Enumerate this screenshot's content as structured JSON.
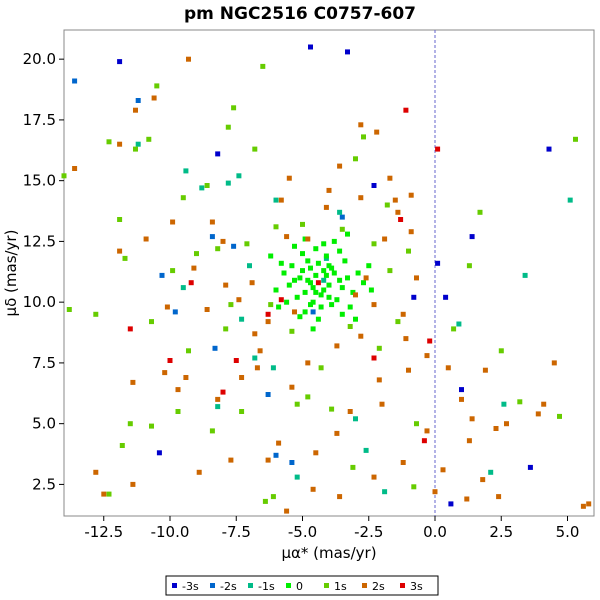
{
  "chart_data": {
    "type": "scatter",
    "title": "pm NGC2516  C0757-607",
    "xlabel": "μα* (mas/yr)",
    "ylabel": "μδ (mas/yr)",
    "xlim": [
      -14.0,
      6.0
    ],
    "ylim": [
      1.2,
      21.2
    ],
    "xticks": [
      -12.5,
      -10.0,
      -7.5,
      -5.0,
      -2.5,
      0.0,
      2.5,
      5.0
    ],
    "xtick_labels": [
      "-12.5",
      "-10.0",
      "-7.5",
      "-5.0",
      "-2.5",
      "0.0",
      "2.5",
      "5.0"
    ],
    "yticks": [
      2.5,
      5.0,
      7.5,
      10.0,
      12.5,
      15.0,
      17.5,
      20.0
    ],
    "ytick_labels": [
      "2.5",
      "5.0",
      "7.5",
      "10.0",
      "12.5",
      "15.0",
      "17.5",
      "20.0"
    ],
    "reference_line_x": 0.0,
    "grid": false,
    "legend_position": "bottom",
    "series": [
      {
        "name": "-3s",
        "color": "#0000cc",
        "points": [
          [
            -11.9,
            19.9
          ],
          [
            -3.3,
            20.3
          ],
          [
            -8.2,
            16.1
          ],
          [
            4.3,
            16.3
          ],
          [
            0.1,
            11.6
          ],
          [
            0.4,
            10.2
          ],
          [
            1.4,
            12.7
          ],
          [
            1.0,
            6.4
          ],
          [
            3.6,
            3.2
          ],
          [
            -10.4,
            3.8
          ],
          [
            0.6,
            1.7
          ],
          [
            -4.7,
            20.5
          ],
          [
            -2.3,
            14.8
          ],
          [
            -0.8,
            10.2
          ]
        ]
      },
      {
        "name": "-2s",
        "color": "#0066cc",
        "points": [
          [
            -13.6,
            19.1
          ],
          [
            -11.2,
            18.3
          ],
          [
            -10.3,
            11.1
          ],
          [
            -8.4,
            12.7
          ],
          [
            -8.3,
            8.1
          ],
          [
            -6.3,
            6.2
          ],
          [
            -6.0,
            3.7
          ],
          [
            -4.6,
            9.6
          ],
          [
            -3.5,
            13.5
          ],
          [
            -9.8,
            9.6
          ],
          [
            -5.4,
            3.4
          ],
          [
            -7.6,
            12.3
          ]
        ]
      },
      {
        "name": "-1s",
        "color": "#00bb88",
        "points": [
          [
            -7.4,
            15.2
          ],
          [
            -9.4,
            15.4
          ],
          [
            -7.8,
            14.9
          ],
          [
            -6.0,
            14.2
          ],
          [
            -3.6,
            13.7
          ],
          [
            -7.3,
            9.3
          ],
          [
            -6.1,
            7.3
          ],
          [
            -4.2,
            10.9
          ],
          [
            5.1,
            14.2
          ],
          [
            0.9,
            9.1
          ],
          [
            2.6,
            5.8
          ],
          [
            3.4,
            11.1
          ],
          [
            -2.6,
            3.9
          ],
          [
            -8.8,
            14.7
          ],
          [
            -11.2,
            16.5
          ],
          [
            2.1,
            3.0
          ],
          [
            -4.1,
            11.8
          ],
          [
            -3.0,
            5.2
          ],
          [
            -1.9,
            2.2
          ],
          [
            -5.2,
            2.8
          ],
          [
            -7.0,
            11.5
          ],
          [
            -8.2,
            5.7
          ],
          [
            -9.5,
            10.6
          ],
          [
            -6.8,
            7.7
          ]
        ]
      },
      {
        "name": "0",
        "color": "#00ee00",
        "points": [
          [
            -4.5,
            11.1
          ],
          [
            -4.7,
            10.8
          ],
          [
            -4.2,
            10.5
          ],
          [
            -3.8,
            11.2
          ],
          [
            -5.1,
            11.0
          ],
          [
            -4.0,
            10.2
          ],
          [
            -4.9,
            10.4
          ],
          [
            -3.5,
            10.6
          ],
          [
            -5.3,
            10.9
          ],
          [
            -4.4,
            11.6
          ],
          [
            -3.9,
            11.4
          ],
          [
            -4.6,
            10.0
          ],
          [
            -5.0,
            11.3
          ],
          [
            -4.1,
            11.9
          ],
          [
            -3.6,
            10.9
          ],
          [
            -4.8,
            11.7
          ],
          [
            -5.5,
            10.7
          ],
          [
            -4.3,
            9.8
          ],
          [
            -3.3,
            11.0
          ],
          [
            -4.7,
            11.4
          ],
          [
            -4.0,
            10.7
          ],
          [
            -5.2,
            10.2
          ],
          [
            -3.7,
            10.1
          ],
          [
            -4.5,
            12.2
          ],
          [
            -5.7,
            11.2
          ],
          [
            -3.1,
            10.4
          ],
          [
            -4.9,
            9.6
          ],
          [
            -4.2,
            12.4
          ],
          [
            -3.4,
            11.7
          ],
          [
            -5.6,
            10.0
          ],
          [
            -4.6,
            10.6
          ],
          [
            -4.1,
            11.1
          ],
          [
            -3.9,
            9.9
          ],
          [
            -5.0,
            12.0
          ],
          [
            -4.4,
            9.3
          ],
          [
            -3.6,
            12.1
          ],
          [
            -5.8,
            11.6
          ],
          [
            -2.9,
            11.2
          ],
          [
            -4.8,
            10.9
          ],
          [
            -4.3,
            10.3
          ],
          [
            -3.2,
            9.8
          ],
          [
            -5.4,
            11.5
          ],
          [
            -4.0,
            11.5
          ],
          [
            -4.7,
            9.9
          ],
          [
            -2.7,
            10.8
          ],
          [
            -6.0,
            10.5
          ],
          [
            -3.8,
            12.5
          ],
          [
            -5.1,
            9.4
          ],
          [
            -4.5,
            10.4
          ],
          [
            -4.2,
            11.3
          ],
          [
            -2.4,
            10.5
          ],
          [
            -6.2,
            11.9
          ],
          [
            -3.5,
            9.5
          ],
          [
            -4.9,
            12.6
          ],
          [
            -5.9,
            9.8
          ],
          [
            -2.5,
            11.5
          ],
          [
            -3.0,
            9.3
          ],
          [
            -5.3,
            12.3
          ],
          [
            -4.6,
            8.9
          ],
          [
            -3.3,
            12.8
          ]
        ]
      },
      {
        "name": "1s",
        "color": "#66cc00",
        "points": [
          [
            -14.0,
            15.2
          ],
          [
            -13.8,
            9.7
          ],
          [
            -12.8,
            9.5
          ],
          [
            -12.3,
            16.6
          ],
          [
            -11.9,
            13.4
          ],
          [
            -11.7,
            11.8
          ],
          [
            -11.3,
            16.3
          ],
          [
            -10.8,
            16.7
          ],
          [
            -10.7,
            9.2
          ],
          [
            -10.5,
            18.9
          ],
          [
            -9.9,
            11.3
          ],
          [
            -9.5,
            14.3
          ],
          [
            -9.3,
            8.0
          ],
          [
            -9.0,
            12.0
          ],
          [
            -8.6,
            14.8
          ],
          [
            -8.2,
            12.2
          ],
          [
            -7.8,
            17.2
          ],
          [
            -7.6,
            18.0
          ],
          [
            -7.1,
            12.4
          ],
          [
            -7.7,
            9.9
          ],
          [
            -7.9,
            8.9
          ],
          [
            -6.8,
            16.3
          ],
          [
            -6.5,
            19.7
          ],
          [
            -6.2,
            9.9
          ],
          [
            -6.0,
            13.1
          ],
          [
            -5.4,
            8.8
          ],
          [
            -5.0,
            13.2
          ],
          [
            -4.8,
            6.1
          ],
          [
            -4.3,
            7.3
          ],
          [
            -3.9,
            5.6
          ],
          [
            -3.5,
            13.0
          ],
          [
            -3.2,
            9.0
          ],
          [
            -3.0,
            15.9
          ],
          [
            -2.7,
            16.8
          ],
          [
            -2.3,
            12.4
          ],
          [
            -1.8,
            14.0
          ],
          [
            -1.4,
            9.2
          ],
          [
            -1.0,
            12.1
          ],
          [
            -0.8,
            2.4
          ],
          [
            -0.7,
            5.0
          ],
          [
            0.7,
            8.9
          ],
          [
            1.3,
            11.5
          ],
          [
            1.7,
            13.7
          ],
          [
            2.5,
            8.0
          ],
          [
            3.2,
            5.9
          ],
          [
            5.3,
            16.7
          ],
          [
            4.7,
            5.3
          ],
          [
            -11.5,
            5.0
          ],
          [
            -10.7,
            4.9
          ],
          [
            -9.7,
            5.5
          ],
          [
            -8.4,
            4.7
          ],
          [
            -6.1,
            2.0
          ],
          [
            -6.4,
            1.8
          ],
          [
            -12.3,
            2.1
          ],
          [
            -11.8,
            4.1
          ],
          [
            -7.3,
            5.5
          ],
          [
            -5.2,
            5.8
          ],
          [
            -3.1,
            3.2
          ],
          [
            -2.1,
            8.1
          ],
          [
            -1.7,
            11.3
          ]
        ]
      },
      {
        "name": "2s",
        "color": "#cc6600",
        "points": [
          [
            -13.6,
            15.5
          ],
          [
            -9.3,
            20.0
          ],
          [
            -11.3,
            17.9
          ],
          [
            -10.6,
            18.4
          ],
          [
            -11.9,
            16.5
          ],
          [
            -11.9,
            12.1
          ],
          [
            -10.9,
            12.6
          ],
          [
            -9.9,
            13.3
          ],
          [
            -9.1,
            11.4
          ],
          [
            -8.6,
            9.7
          ],
          [
            -8.4,
            13.3
          ],
          [
            -7.9,
            10.7
          ],
          [
            -7.4,
            10.1
          ],
          [
            -6.8,
            8.7
          ],
          [
            -6.6,
            8.0
          ],
          [
            -6.3,
            9.2
          ],
          [
            -5.8,
            14.2
          ],
          [
            -5.5,
            15.1
          ],
          [
            -4.8,
            12.6
          ],
          [
            -4.1,
            13.9
          ],
          [
            -3.6,
            15.6
          ],
          [
            -2.8,
            17.3
          ],
          [
            -2.2,
            17.0
          ],
          [
            -1.7,
            15.1
          ],
          [
            -1.4,
            13.7
          ],
          [
            -0.9,
            12.9
          ],
          [
            -0.7,
            11.0
          ],
          [
            -1.2,
            9.5
          ],
          [
            -2.8,
            8.6
          ],
          [
            -3.7,
            8.2
          ],
          [
            -4.8,
            7.5
          ],
          [
            -5.4,
            6.5
          ],
          [
            -6.7,
            7.3
          ],
          [
            -7.3,
            6.9
          ],
          [
            -8.2,
            6.0
          ],
          [
            -9.4,
            6.9
          ],
          [
            -10.2,
            7.1
          ],
          [
            -11.4,
            6.7
          ],
          [
            -12.8,
            3.0
          ],
          [
            -12.5,
            2.1
          ],
          [
            -11.4,
            2.5
          ],
          [
            -9.7,
            6.4
          ],
          [
            -8.9,
            3.0
          ],
          [
            -7.7,
            3.5
          ],
          [
            -6.3,
            3.5
          ],
          [
            -5.6,
            1.4
          ],
          [
            -4.6,
            2.3
          ],
          [
            -3.6,
            2.0
          ],
          [
            -2.3,
            2.8
          ],
          [
            -1.2,
            3.4
          ],
          [
            -0.3,
            4.7
          ],
          [
            0.5,
            7.3
          ],
          [
            1.0,
            6.0
          ],
          [
            1.4,
            5.2
          ],
          [
            1.9,
            7.2
          ],
          [
            2.3,
            4.8
          ],
          [
            2.4,
            2.0
          ],
          [
            1.8,
            2.7
          ],
          [
            1.2,
            1.9
          ],
          [
            0.0,
            2.2
          ],
          [
            0.3,
            3.1
          ],
          [
            3.9,
            5.4
          ],
          [
            4.1,
            5.8
          ],
          [
            4.5,
            7.5
          ],
          [
            5.6,
            1.6
          ],
          [
            5.8,
            1.7
          ],
          [
            -3.7,
            4.6
          ],
          [
            -4.5,
            3.8
          ],
          [
            -5.9,
            4.2
          ],
          [
            -2.0,
            5.8
          ],
          [
            -1.0,
            7.2
          ],
          [
            -2.1,
            6.8
          ],
          [
            -3.2,
            5.5
          ],
          [
            -10.1,
            9.8
          ],
          [
            -8.0,
            12.5
          ],
          [
            -6.9,
            10.8
          ],
          [
            -5.3,
            9.6
          ],
          [
            -2.3,
            9.9
          ],
          [
            -1.1,
            8.5
          ],
          [
            -0.3,
            7.8
          ],
          [
            2.7,
            5.0
          ],
          [
            1.3,
            4.3
          ],
          [
            -2.6,
            11.0
          ],
          [
            -3.0,
            10.3
          ],
          [
            -1.9,
            12.6
          ],
          [
            -4.0,
            14.6
          ],
          [
            -5.6,
            12.7
          ],
          [
            -1.5,
            14.2
          ],
          [
            -0.9,
            14.4
          ],
          [
            -2.8,
            14.3
          ]
        ]
      },
      {
        "name": "3s",
        "color": "#dd0000",
        "points": [
          [
            -1.1,
            17.9
          ],
          [
            0.1,
            16.3
          ],
          [
            -1.3,
            13.4
          ],
          [
            -9.2,
            10.8
          ],
          [
            -11.5,
            8.9
          ],
          [
            -10.0,
            7.6
          ],
          [
            -7.5,
            7.6
          ],
          [
            -8.0,
            6.3
          ],
          [
            -2.3,
            7.7
          ],
          [
            -0.2,
            8.4
          ],
          [
            -0.4,
            4.3
          ],
          [
            -5.8,
            10.1
          ],
          [
            -6.3,
            9.5
          ],
          [
            -4.4,
            10.8
          ]
        ]
      }
    ]
  }
}
